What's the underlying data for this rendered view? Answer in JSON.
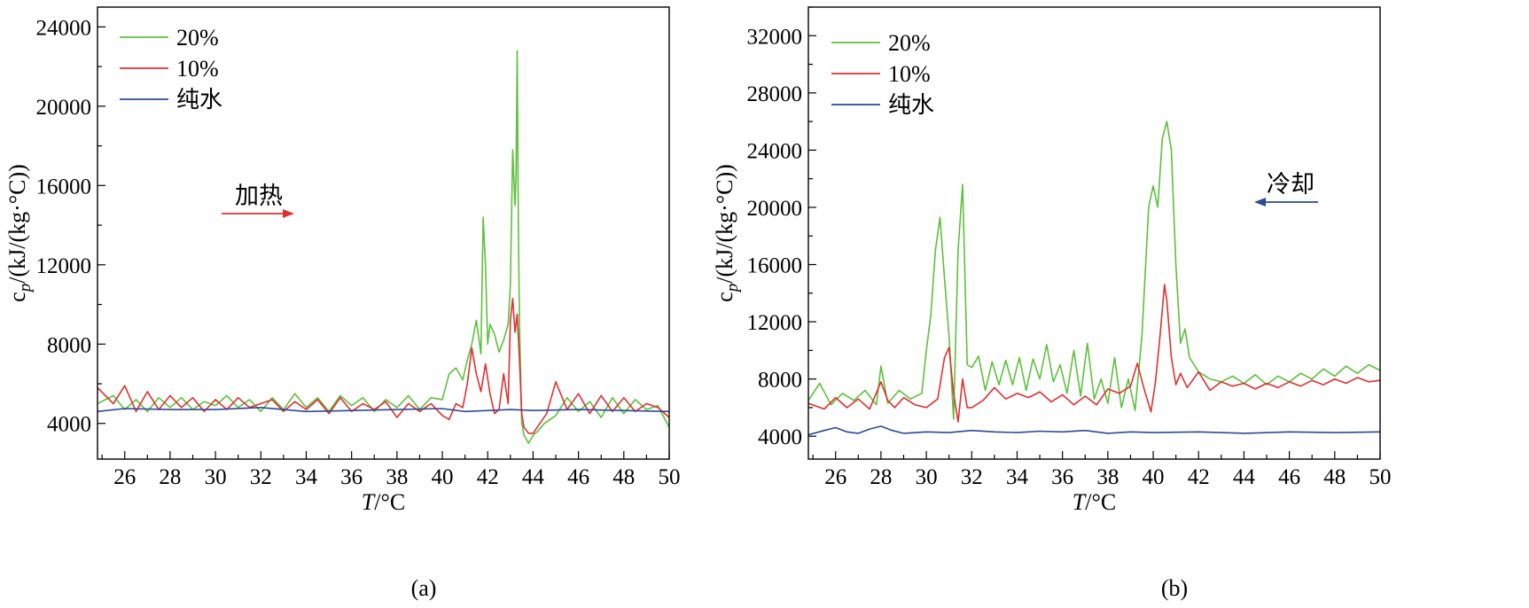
{
  "chart_data": [
    {
      "type": "line",
      "panel": "(a)",
      "xlabel_var": "T",
      "xlabel_unit": "/°C",
      "ylabel_base": "c",
      "ylabel_sub": "p",
      "ylabel_rest": "/(kJ/(kg·°C))",
      "xlim": [
        24.8,
        50
      ],
      "ylim": [
        2200,
        25000
      ],
      "xticks": [
        26,
        28,
        30,
        32,
        34,
        36,
        38,
        40,
        42,
        44,
        46,
        48,
        50
      ],
      "yticks": [
        4000,
        8000,
        12000,
        16000,
        20000,
        24000
      ],
      "legend_position": "top-left",
      "annotation": {
        "text": "加热",
        "direction": "right",
        "color": "#e03030"
      },
      "series": [
        {
          "name": "20%",
          "color": "#5ec03c",
          "x": [
            24.8,
            25.5,
            26.0,
            26.5,
            27.0,
            27.5,
            28.0,
            28.5,
            29.0,
            29.5,
            30.0,
            30.5,
            31.0,
            31.5,
            32.0,
            32.5,
            33.0,
            33.5,
            34.0,
            34.5,
            35.0,
            35.5,
            36.0,
            36.5,
            37.0,
            37.5,
            38.0,
            38.5,
            39.0,
            39.5,
            40.0,
            40.3,
            40.6,
            40.9,
            41.1,
            41.3,
            41.5,
            41.7,
            41.8,
            41.9,
            42.0,
            42.1,
            42.3,
            42.5,
            42.7,
            42.9,
            43.0,
            43.1,
            43.2,
            43.25,
            43.3,
            43.35,
            43.4,
            43.5,
            43.6,
            43.7,
            43.8,
            43.9,
            44.0,
            44.2,
            44.5,
            45.0,
            45.5,
            46.0,
            46.5,
            47.0,
            47.5,
            48.0,
            48.5,
            49.0,
            49.5,
            50.0
          ],
          "y": [
            5000,
            5400,
            4700,
            5200,
            4600,
            5300,
            4800,
            5300,
            4700,
            5100,
            4900,
            5400,
            4800,
            5200,
            4600,
            5300,
            4700,
            5500,
            4800,
            5300,
            4600,
            5400,
            4900,
            5300,
            4600,
            5200,
            4800,
            5400,
            4700,
            5300,
            5200,
            6500,
            6800,
            6200,
            7200,
            8000,
            9200,
            7500,
            14400,
            12000,
            8000,
            9000,
            8500,
            7600,
            8200,
            9000,
            11000,
            17800,
            15000,
            16500,
            22800,
            14000,
            9000,
            4000,
            3400,
            3200,
            3000,
            3200,
            3400,
            3600,
            4000,
            4400,
            5300,
            4600,
            5100,
            4300,
            5300,
            4500,
            5200,
            4700,
            4900,
            3800
          ]
        },
        {
          "name": "10%",
          "color": "#e03030",
          "x": [
            24.8,
            25.5,
            26.0,
            26.5,
            27.0,
            27.5,
            28.0,
            28.5,
            29.0,
            29.5,
            30.0,
            30.5,
            31.0,
            31.5,
            32.0,
            32.5,
            33.0,
            33.5,
            34.0,
            34.5,
            35.0,
            35.5,
            36.0,
            36.5,
            37.0,
            37.5,
            38.0,
            38.5,
            39.0,
            39.5,
            40.0,
            40.3,
            40.6,
            40.9,
            41.1,
            41.3,
            41.5,
            41.7,
            41.9,
            42.1,
            42.3,
            42.5,
            42.7,
            42.9,
            43.0,
            43.1,
            43.2,
            43.3,
            43.4,
            43.5,
            43.6,
            43.8,
            44.0,
            44.3,
            44.6,
            45.0,
            45.5,
            46.0,
            46.5,
            47.0,
            47.5,
            48.0,
            48.5,
            49.0,
            49.5,
            50.0
          ],
          "y": [
            5800,
            5000,
            5900,
            4600,
            5600,
            4700,
            5400,
            4800,
            5300,
            4600,
            5200,
            4700,
            5300,
            4800,
            5000,
            5200,
            4600,
            5100,
            4700,
            5200,
            4500,
            5300,
            4600,
            5000,
            4700,
            5100,
            4300,
            5000,
            4600,
            5000,
            4400,
            4200,
            5000,
            4800,
            6000,
            7800,
            6500,
            5600,
            7000,
            5500,
            4500,
            4700,
            6500,
            5000,
            9200,
            10300,
            8600,
            9500,
            7200,
            4500,
            3800,
            3500,
            3500,
            4000,
            4500,
            6100,
            4700,
            5500,
            4500,
            5400,
            4600,
            5300,
            4600,
            5000,
            4800,
            4300
          ]
        },
        {
          "name": "纯水",
          "color": "#2c4a94",
          "x": [
            24.8,
            26,
            28,
            30,
            32,
            34,
            36,
            38,
            40,
            41,
            42,
            43,
            44,
            46,
            48,
            50
          ],
          "y": [
            4600,
            4750,
            4700,
            4700,
            4800,
            4600,
            4650,
            4700,
            4750,
            4600,
            4650,
            4700,
            4650,
            4700,
            4650,
            4600
          ]
        }
      ]
    },
    {
      "type": "line",
      "panel": "(b)",
      "xlabel_var": "T",
      "xlabel_unit": "/°C",
      "ylabel_base": "c",
      "ylabel_sub": "p",
      "ylabel_rest": "/(kJ/(kg·°C))",
      "xlim": [
        24.8,
        50
      ],
      "ylim": [
        2400,
        34000
      ],
      "xticks": [
        26,
        28,
        30,
        32,
        34,
        36,
        38,
        40,
        42,
        44,
        46,
        48,
        50
      ],
      "yticks": [
        4000,
        8000,
        12000,
        16000,
        20000,
        24000,
        28000,
        32000
      ],
      "legend_position": "top-left",
      "annotation": {
        "text": "冷却",
        "direction": "left",
        "color": "#2c4a94"
      },
      "series": [
        {
          "name": "20%",
          "color": "#5ec03c",
          "x": [
            24.8,
            25.3,
            25.8,
            26.3,
            26.8,
            27.3,
            27.8,
            28.0,
            28.3,
            28.8,
            29.3,
            29.8,
            30.0,
            30.2,
            30.4,
            30.6,
            30.8,
            31.0,
            31.2,
            31.4,
            31.6,
            31.8,
            32.0,
            32.3,
            32.6,
            32.9,
            33.2,
            33.5,
            33.8,
            34.1,
            34.4,
            34.7,
            35.0,
            35.3,
            35.6,
            35.9,
            36.2,
            36.5,
            36.8,
            37.1,
            37.4,
            37.7,
            38.0,
            38.3,
            38.6,
            38.9,
            39.2,
            39.5,
            39.8,
            40.0,
            40.2,
            40.4,
            40.6,
            40.8,
            41.0,
            41.2,
            41.4,
            41.6,
            41.8,
            42.0,
            42.5,
            43.0,
            43.5,
            44.0,
            44.5,
            45.0,
            45.5,
            46.0,
            46.5,
            47.0,
            47.5,
            48.0,
            48.5,
            49.0,
            49.5,
            50.0
          ],
          "y": [
            6500,
            7700,
            6200,
            7000,
            6500,
            7200,
            6200,
            8900,
            6300,
            7200,
            6600,
            7000,
            10000,
            12500,
            17000,
            19300,
            15000,
            11000,
            5200,
            17000,
            21600,
            9000,
            8800,
            9600,
            7200,
            9200,
            7600,
            9300,
            7600,
            9500,
            7200,
            9400,
            8000,
            10400,
            7800,
            9000,
            7000,
            10000,
            6800,
            10500,
            6600,
            8000,
            6300,
            9500,
            6000,
            8000,
            5800,
            11000,
            20000,
            21500,
            20000,
            24800,
            26000,
            24000,
            16000,
            10500,
            11500,
            9500,
            9000,
            8500,
            8000,
            7800,
            8200,
            7700,
            8300,
            7600,
            8200,
            7800,
            8400,
            8000,
            8700,
            8200,
            8900,
            8400,
            9000,
            8600
          ]
        },
        {
          "name": "10%",
          "color": "#e03030",
          "x": [
            24.8,
            25.5,
            26.0,
            26.5,
            27.0,
            27.5,
            28.0,
            28.3,
            28.6,
            29.0,
            29.5,
            30.0,
            30.5,
            30.8,
            31.0,
            31.2,
            31.4,
            31.6,
            31.8,
            32.0,
            32.5,
            33.0,
            33.5,
            34.0,
            34.5,
            35.0,
            35.5,
            36.0,
            36.5,
            37.0,
            37.5,
            38.0,
            38.5,
            39.0,
            39.3,
            39.6,
            39.9,
            40.1,
            40.3,
            40.5,
            40.6,
            40.8,
            41.0,
            41.2,
            41.5,
            42.0,
            42.5,
            43.0,
            43.5,
            44.0,
            44.5,
            45.0,
            45.5,
            46.0,
            46.5,
            47.0,
            47.5,
            48.0,
            48.5,
            49.0,
            49.5,
            50.0
          ],
          "y": [
            6300,
            5900,
            6700,
            6000,
            6600,
            5900,
            7800,
            6500,
            6000,
            6700,
            6200,
            6000,
            6600,
            9500,
            10200,
            7000,
            5000,
            8000,
            6000,
            6000,
            6500,
            7400,
            6600,
            7000,
            6700,
            7100,
            6400,
            6900,
            6200,
            6800,
            6200,
            7300,
            7000,
            7500,
            9100,
            7300,
            5700,
            7800,
            11000,
            14600,
            13500,
            9500,
            7600,
            8400,
            7400,
            8500,
            7200,
            7800,
            7500,
            7700,
            7300,
            7700,
            7400,
            7800,
            7500,
            7900,
            7600,
            8000,
            7700,
            8100,
            7800,
            7900
          ]
        },
        {
          "name": "纯水",
          "color": "#2c4a94",
          "x": [
            24.8,
            25.5,
            26,
            26.5,
            27,
            27.5,
            28,
            28.5,
            29,
            30,
            31,
            32,
            33,
            34,
            35,
            36,
            37,
            38,
            39,
            40,
            42,
            44,
            46,
            48,
            50
          ],
          "y": [
            4100,
            4400,
            4600,
            4300,
            4200,
            4500,
            4700,
            4400,
            4200,
            4300,
            4250,
            4400,
            4300,
            4250,
            4350,
            4300,
            4400,
            4200,
            4300,
            4250,
            4300,
            4200,
            4300,
            4250,
            4300
          ]
        }
      ]
    }
  ]
}
